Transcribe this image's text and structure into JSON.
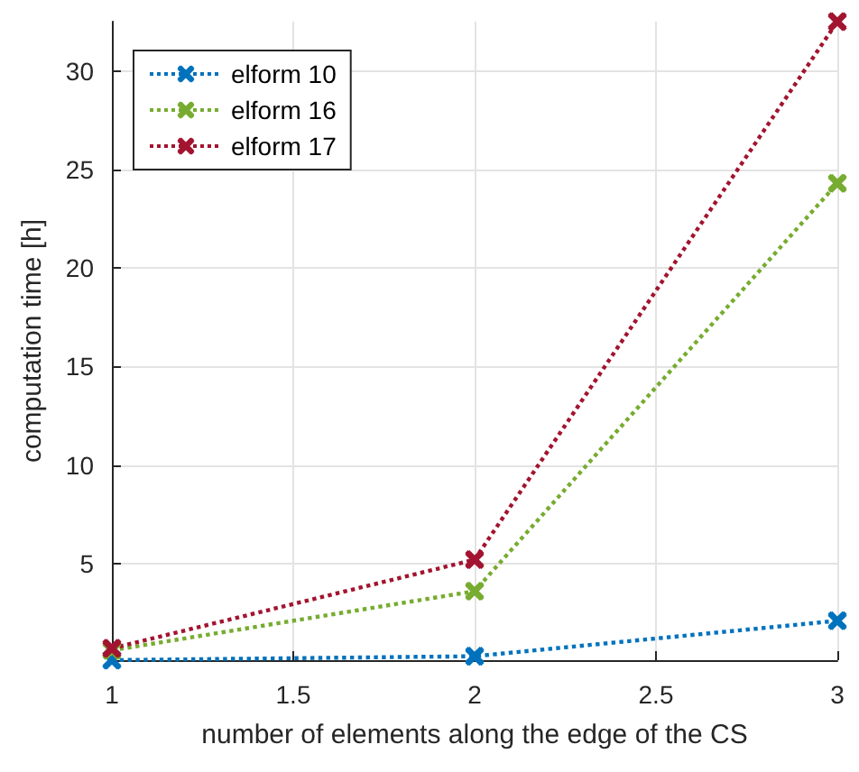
{
  "chart_data": {
    "type": "line",
    "xlabel": "number of elements along the edge of the CS",
    "ylabel": "computation time [h]",
    "x": [
      1,
      2,
      3
    ],
    "series": [
      {
        "name": "elform 10",
        "color": "#0072bd",
        "values": [
          0.1,
          0.3,
          2.1
        ]
      },
      {
        "name": "elform 16",
        "color": "#77ac30",
        "values": [
          0.6,
          3.6,
          24.3
        ]
      },
      {
        "name": "elform 17",
        "color": "#a2142f",
        "values": [
          0.7,
          5.2,
          32.5
        ]
      }
    ],
    "xlim": [
      1,
      3
    ],
    "xticks": [
      1,
      1.5,
      2,
      2.5,
      3
    ],
    "ylim": [
      0.1,
      32.5
    ],
    "yticks": [
      5,
      10,
      15,
      20,
      25,
      30
    ],
    "grid": true,
    "legend": "top left",
    "marker": "cross",
    "line_style": "dotted"
  }
}
